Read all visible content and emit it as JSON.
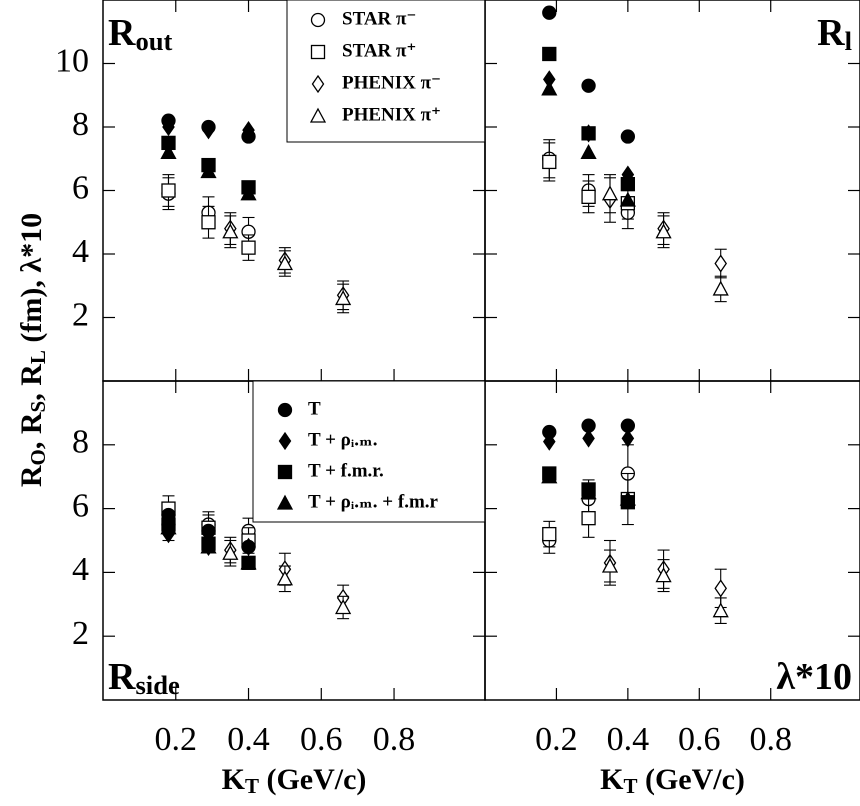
{
  "chart_data": [
    {
      "type": "scatter",
      "title": [
        {
          "text": "R"
        },
        {
          "text": "out",
          "sub": true
        }
      ],
      "ylabel": [
        {
          "text": "R"
        },
        {
          "text": "O",
          "sub": true
        },
        {
          "text": ",  R"
        },
        {
          "text": "S",
          "sub": true
        },
        {
          "text": ",  R"
        },
        {
          "text": "L",
          "sub": true
        },
        {
          "text": " (fm),  λ*10"
        }
      ],
      "xlim": [
        0,
        1.05
      ],
      "xticks": [
        0.2,
        0.4,
        0.6,
        0.8
      ],
      "ylim": [
        0,
        12
      ],
      "yticks": [
        2,
        4,
        6,
        8,
        10
      ],
      "legend": "upper right",
      "series": [
        {
          "name": "STAR π⁻",
          "marker": "circle",
          "filled": false,
          "color": "#000000",
          "x": [
            0.18,
            0.29,
            0.4
          ],
          "values": [
            5.9,
            5.3,
            4.7
          ],
          "errors": [
            0.5,
            0.5,
            0.45
          ]
        },
        {
          "name": "STAR π⁺",
          "marker": "square",
          "filled": false,
          "color": "#000000",
          "x": [
            0.18,
            0.29,
            0.4
          ],
          "values": [
            6.0,
            5.0,
            4.2
          ],
          "errors": [
            0.5,
            0.5,
            0.4
          ]
        },
        {
          "name": "PHENIX π⁻",
          "marker": "diamond",
          "filled": false,
          "color": "#000000",
          "x": [
            0.35,
            0.5,
            0.66
          ],
          "values": [
            4.8,
            3.8,
            2.7
          ],
          "errors": [
            0.5,
            0.4,
            0.45
          ]
        },
        {
          "name": "PHENIX π⁺",
          "marker": "triangle",
          "filled": false,
          "color": "#000000",
          "x": [
            0.35,
            0.5,
            0.66
          ],
          "values": [
            4.7,
            3.7,
            2.6
          ],
          "errors": [
            0.5,
            0.4,
            0.45
          ]
        },
        {
          "marker": "circle",
          "filled": true,
          "color": "#000000",
          "x": [
            0.18,
            0.29,
            0.4
          ],
          "values": [
            8.2,
            8.0,
            7.7
          ]
        },
        {
          "marker": "diamond",
          "filled": true,
          "color": "#000000",
          "x": [
            0.18,
            0.29,
            0.4
          ],
          "values": [
            8.0,
            7.9,
            7.9
          ]
        },
        {
          "marker": "square",
          "filled": true,
          "color": "#000000",
          "x": [
            0.18,
            0.29,
            0.4
          ],
          "values": [
            7.5,
            6.8,
            6.1
          ]
        },
        {
          "marker": "triangle",
          "filled": true,
          "color": "#000000",
          "x": [
            0.18,
            0.29,
            0.4
          ],
          "values": [
            7.2,
            6.6,
            5.9
          ]
        }
      ]
    },
    {
      "type": "scatter",
      "title": [
        {
          "text": "R"
        },
        {
          "text": "l",
          "sub": true
        }
      ],
      "xlim": [
        0,
        1.05
      ],
      "xticks": [
        0.2,
        0.4,
        0.6,
        0.8
      ],
      "ylim": [
        0,
        12
      ],
      "yticks": [
        2,
        4,
        6,
        8,
        10
      ],
      "series": [
        {
          "marker": "circle",
          "filled": false,
          "color": "#000000",
          "x": [
            0.18,
            0.29,
            0.4
          ],
          "values": [
            7.0,
            6.0,
            5.3
          ],
          "errors": [
            0.6,
            0.5,
            0.5
          ]
        },
        {
          "marker": "square",
          "filled": false,
          "color": "#000000",
          "x": [
            0.18,
            0.29,
            0.4
          ],
          "values": [
            6.9,
            5.8,
            5.6
          ],
          "errors": [
            0.6,
            0.5,
            0.5
          ]
        },
        {
          "marker": "diamond",
          "filled": false,
          "color": "#000000",
          "x": [
            0.35,
            0.5,
            0.66
          ],
          "values": [
            5.7,
            4.8,
            3.7
          ],
          "errors": [
            0.7,
            0.5,
            0.45
          ]
        },
        {
          "marker": "triangle",
          "filled": false,
          "color": "#000000",
          "x": [
            0.35,
            0.5,
            0.66
          ],
          "values": [
            5.9,
            4.7,
            2.9
          ],
          "errors": [
            0.6,
            0.5,
            0.4
          ]
        },
        {
          "marker": "circle",
          "filled": true,
          "color": "#000000",
          "x": [
            0.18,
            0.29,
            0.4
          ],
          "values": [
            11.6,
            9.3,
            7.7
          ]
        },
        {
          "marker": "diamond",
          "filled": true,
          "color": "#000000",
          "x": [
            0.18,
            0.29,
            0.4
          ],
          "values": [
            9.5,
            7.8,
            6.5
          ]
        },
        {
          "marker": "square",
          "filled": true,
          "color": "#000000",
          "x": [
            0.18,
            0.29,
            0.4
          ],
          "values": [
            10.3,
            7.8,
            6.2
          ]
        },
        {
          "marker": "triangle",
          "filled": true,
          "color": "#000000",
          "x": [
            0.18,
            0.29,
            0.4
          ],
          "values": [
            9.2,
            7.2,
            5.7
          ]
        }
      ]
    },
    {
      "type": "scatter",
      "title": [
        {
          "text": "R"
        },
        {
          "text": "side",
          "sub": true
        }
      ],
      "xlabel": [
        {
          "text": "K"
        },
        {
          "text": "T",
          "sub": true
        },
        {
          "text": " (GeV/c)"
        }
      ],
      "xlim": [
        0,
        1.05
      ],
      "xticks": [
        0.2,
        0.4,
        0.6,
        0.8
      ],
      "ylim": [
        0,
        10
      ],
      "yticks": [
        2,
        4,
        6,
        8
      ],
      "legend": "upper right",
      "series": [
        {
          "marker": "circle",
          "filled": false,
          "color": "#000000",
          "x": [
            0.18,
            0.29,
            0.4
          ],
          "values": [
            5.5,
            5.5,
            5.3
          ],
          "errors": [
            0.5,
            0.4,
            0.4
          ]
        },
        {
          "marker": "square",
          "filled": false,
          "color": "#000000",
          "x": [
            0.18,
            0.29,
            0.4
          ],
          "values": [
            6.0,
            5.4,
            5.0
          ],
          "errors": [
            0.4,
            0.4,
            0.4
          ]
        },
        {
          "marker": "diamond",
          "filled": false,
          "color": "#000000",
          "x": [
            0.35,
            0.5,
            0.66
          ],
          "values": [
            4.7,
            4.1,
            3.2
          ],
          "errors": [
            0.4,
            0.5,
            0.4
          ]
        },
        {
          "marker": "triangle",
          "filled": false,
          "color": "#000000",
          "x": [
            0.35,
            0.5,
            0.66
          ],
          "values": [
            4.6,
            3.8,
            2.9
          ],
          "errors": [
            0.4,
            0.4,
            0.35
          ]
        },
        {
          "name": "T",
          "marker": "circle",
          "filled": true,
          "color": "#000000",
          "x": [
            0.18,
            0.29,
            0.4
          ],
          "values": [
            5.8,
            5.3,
            4.8
          ]
        },
        {
          "name": "T + ρᵢ.ₘ.",
          "marker": "diamond",
          "filled": true,
          "color": "#000000",
          "x": [
            0.18,
            0.29,
            0.4
          ],
          "values": [
            5.2,
            4.8,
            4.8
          ]
        },
        {
          "name": "T + f.m.r.",
          "marker": "square",
          "filled": true,
          "color": "#000000",
          "x": [
            0.18,
            0.29,
            0.4
          ],
          "values": [
            5.5,
            4.9,
            4.3
          ]
        },
        {
          "name": "T + ρᵢ.ₘ. + f.m.r",
          "marker": "triangle",
          "filled": true,
          "color": "#000000",
          "x": [
            0.18,
            0.29,
            0.4
          ],
          "values": [
            5.4,
            4.8,
            4.3
          ]
        }
      ]
    },
    {
      "type": "scatter",
      "title": [
        {
          "text": "λ*10"
        }
      ],
      "xlabel": [
        {
          "text": "K"
        },
        {
          "text": "T",
          "sub": true
        },
        {
          "text": " (GeV/c)"
        }
      ],
      "xlim": [
        0,
        1.05
      ],
      "xticks": [
        0.2,
        0.4,
        0.6,
        0.8
      ],
      "ylim": [
        0,
        10
      ],
      "yticks": [
        2,
        4,
        6,
        8
      ],
      "series": [
        {
          "marker": "circle",
          "filled": false,
          "color": "#000000",
          "x": [
            0.18,
            0.29,
            0.4
          ],
          "values": [
            5.0,
            6.3,
            7.1
          ],
          "errors": [
            0.4,
            0.6,
            0.9
          ]
        },
        {
          "marker": "square",
          "filled": false,
          "color": "#000000",
          "x": [
            0.18,
            0.29,
            0.4
          ],
          "values": [
            5.2,
            5.7,
            6.3
          ],
          "errors": [
            0.4,
            0.6,
            0.8
          ]
        },
        {
          "marker": "diamond",
          "filled": false,
          "color": "#000000",
          "x": [
            0.35,
            0.5,
            0.66
          ],
          "values": [
            4.3,
            4.1,
            3.5
          ],
          "errors": [
            0.7,
            0.6,
            0.6
          ]
        },
        {
          "marker": "triangle",
          "filled": false,
          "color": "#000000",
          "x": [
            0.35,
            0.5,
            0.66
          ],
          "values": [
            4.2,
            3.9,
            2.8
          ],
          "errors": [
            0.5,
            0.5,
            0.4
          ]
        },
        {
          "marker": "circle",
          "filled": true,
          "color": "#000000",
          "x": [
            0.18,
            0.29,
            0.4
          ],
          "values": [
            8.4,
            8.6,
            8.6
          ]
        },
        {
          "marker": "diamond",
          "filled": true,
          "color": "#000000",
          "x": [
            0.18,
            0.29,
            0.4
          ],
          "values": [
            8.1,
            8.2,
            8.2
          ]
        },
        {
          "marker": "square",
          "filled": true,
          "color": "#000000",
          "x": [
            0.18,
            0.29,
            0.4
          ],
          "values": [
            7.1,
            6.6,
            6.2
          ]
        },
        {
          "marker": "triangle",
          "filled": true,
          "color": "#000000",
          "x": [
            0.18,
            0.29,
            0.4
          ],
          "values": [
            7.0,
            6.5,
            6.3
          ]
        }
      ]
    }
  ]
}
